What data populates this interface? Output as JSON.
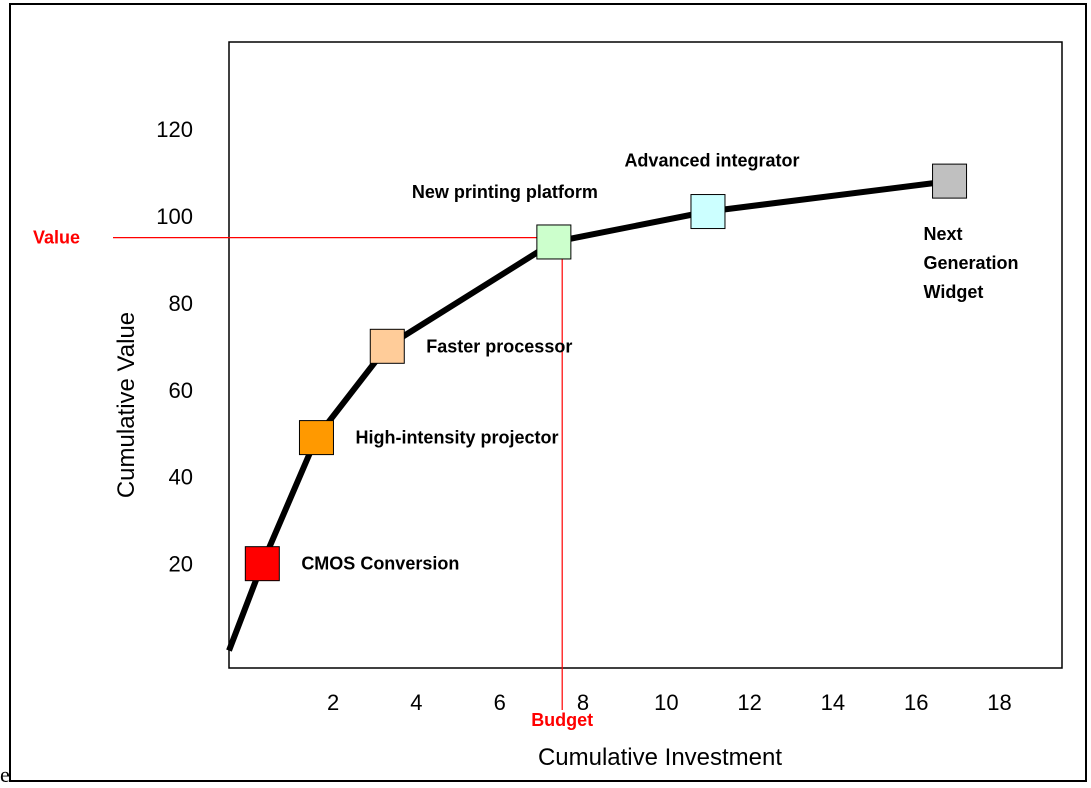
{
  "chart_data": {
    "type": "line",
    "xlabel": "Cumulative Investment",
    "ylabel": "Cumulative Value",
    "xlim": [
      -0.5,
      19.5
    ],
    "ylim": [
      -4,
      140
    ],
    "x_ticks": [
      2,
      4,
      6,
      8,
      10,
      12,
      14,
      16,
      18
    ],
    "y_ticks": [
      20,
      40,
      60,
      80,
      100,
      120
    ],
    "series": [
      {
        "line_color": "#000000",
        "points": [
          {
            "x": -0.5,
            "y": 0,
            "label": ""
          },
          {
            "x": 0.3,
            "y": 20,
            "label": "CMOS Conversion",
            "marker_color": "#ff0000",
            "label_pos": "right"
          },
          {
            "x": 1.6,
            "y": 49,
            "label": "High-intensity projector",
            "marker_color": "#ff9900",
            "label_pos": "right"
          },
          {
            "x": 3.3,
            "y": 70,
            "label": "Faster processor",
            "marker_color": "#ffcc99",
            "label_pos": "right"
          },
          {
            "x": 7.3,
            "y": 94,
            "label": "New printing platform",
            "marker_color": "#ccffcc",
            "label_pos": "above-left"
          },
          {
            "x": 11.0,
            "y": 101,
            "label": "Advanced integrator",
            "marker_color": "#ccffff",
            "label_pos": "above"
          },
          {
            "x": 16.8,
            "y": 108,
            "label": "Next Generation Widget",
            "marker_color": "#c0c0c0",
            "label_pos": "below"
          }
        ]
      }
    ],
    "reference_lines": {
      "value": {
        "label": "Value",
        "y": 95,
        "color": "#ff0000"
      },
      "budget": {
        "label": "Budget",
        "x": 7.5,
        "color": "#ff0000"
      }
    }
  },
  "stray_char": "e"
}
